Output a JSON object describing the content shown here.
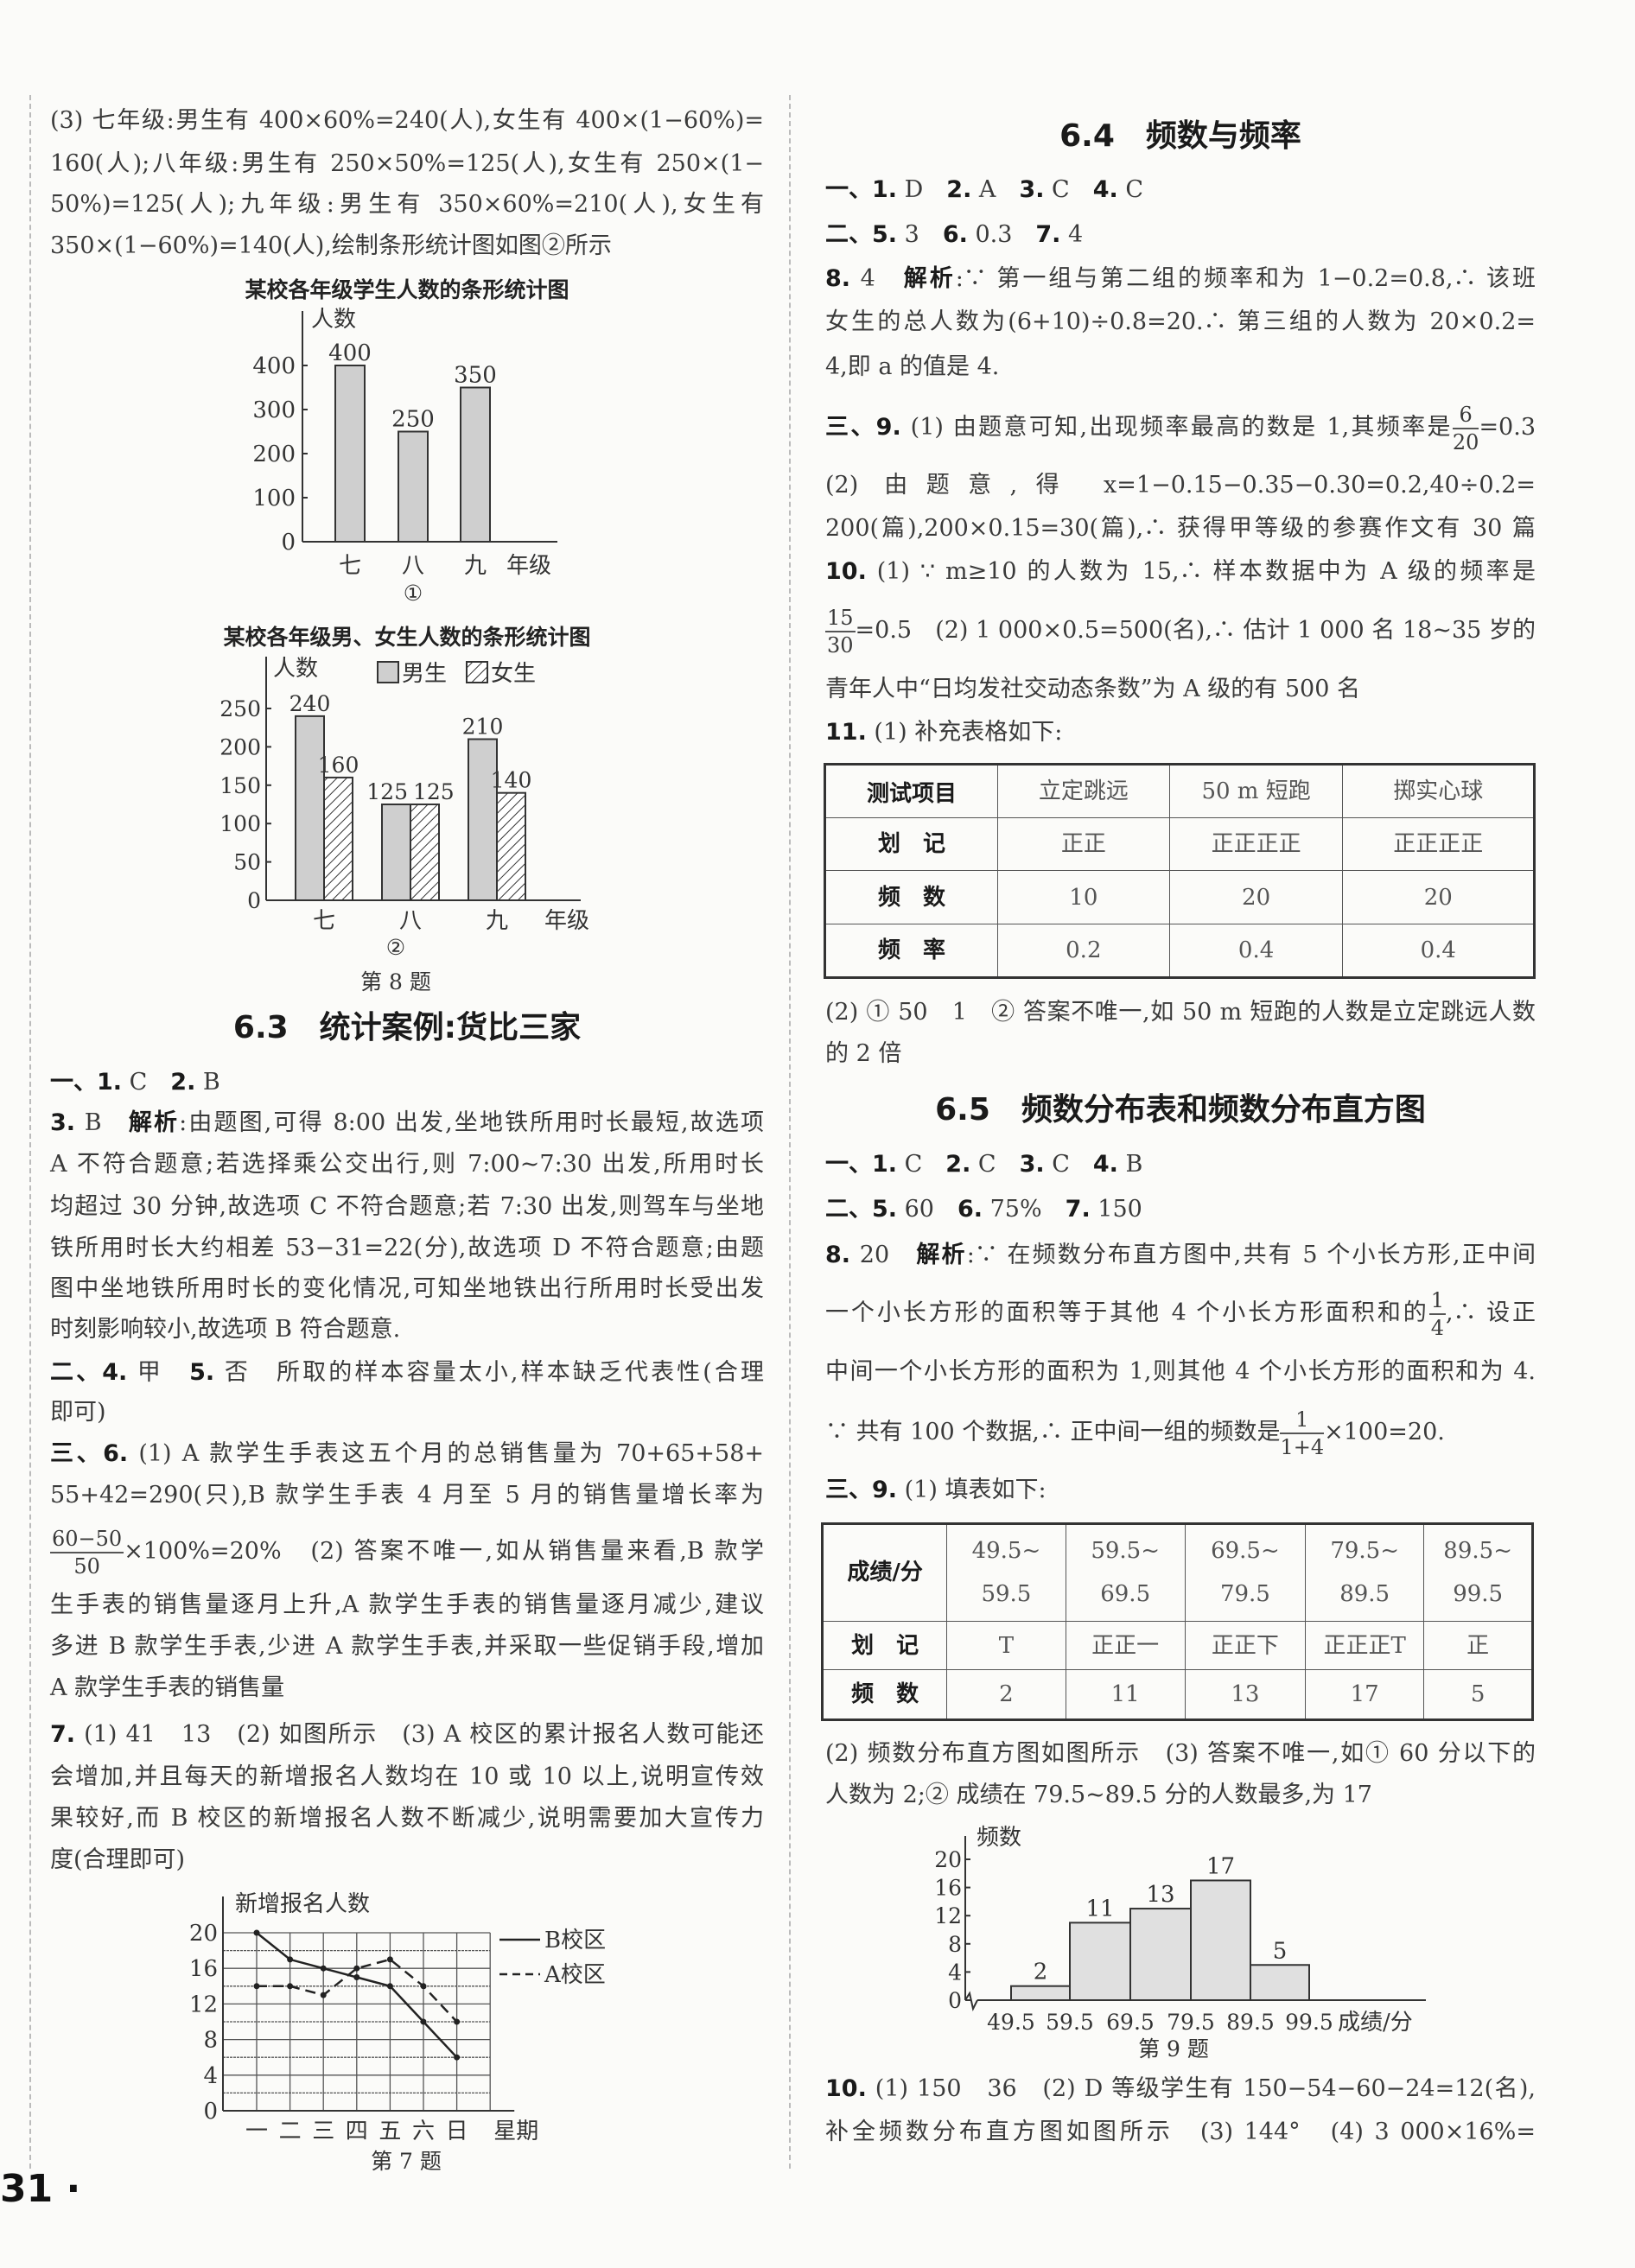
{
  "left": {
    "lines": [
      [
        {
          "t": "(3) 七年级:男生有 400×60%=240(人),女生有 400×(1−60%)="
        }
      ],
      [
        {
          "t": "160(人);八年级:男生有 250×50%=125(人),女生有 250×(1−"
        }
      ],
      [
        {
          "t": "50%)=125(人);九年级:男生有 350×60%=210(人),女生有"
        }
      ],
      [
        {
          "t": "350×(1−60%)=140(人),绘制条形统计图如图②所示"
        }
      ]
    ],
    "chart1_title": "某校各年级学生人数的条形统计图",
    "chart1_caption": "①",
    "chart2_title": "某校各年级男、女生人数的条形统计图",
    "chart2_caption": "②",
    "fig8_caption": "第 8 题",
    "sec63_title": "6.3　统计案例:货比三家",
    "sec63_lines": [
      [
        {
          "b": "一、1."
        },
        {
          "t": " C　"
        },
        {
          "b": "2."
        },
        {
          "t": " B"
        }
      ],
      [
        {
          "b": "3."
        },
        {
          "t": " B　"
        },
        {
          "b": "解析"
        },
        {
          "t": ":由题图,可得 8:00 出发,坐地铁所用时长最短,故选项"
        }
      ],
      [
        {
          "t": "A 不符合题意;若选择乘公交出行,则 7:00~7:30 出发,所用时长"
        }
      ],
      [
        {
          "t": "均超过 30 分钟,故选项 C 不符合题意;若 7:30 出发,则驾车与坐地"
        }
      ],
      [
        {
          "t": "铁所用时长大约相差 53−31=22(分),故选项 D 不符合题意;由题"
        }
      ],
      [
        {
          "t": "图中坐地铁所用时长的变化情况,可知坐地铁出行所用时长受出发"
        }
      ],
      [
        {
          "t": "时刻影响较小,故选项 B 符合题意."
        }
      ],
      [
        {
          "b": "二、4."
        },
        {
          "t": " 甲　"
        },
        {
          "b": "5."
        },
        {
          "t": " 否　所取的样本容量太小,样本缺乏代表性(合理"
        }
      ],
      [
        {
          "t": "即可)"
        }
      ],
      [
        {
          "b": "三、6."
        },
        {
          "t": " (1) A 款学生手表这五个月的总销售量为 70+65+58+"
        }
      ],
      [
        {
          "t": "55+42=290(只),B 款学生手表 4 月至 5 月的销售量增长率为"
        }
      ],
      [
        {
          "f": [
            "60−50",
            "50"
          ]
        },
        {
          "t": "×100%=20%　(2) 答案不唯一,如从销售量来看,B 款学"
        }
      ],
      [
        {
          "t": "生手表的销售量逐月上升,A 款学生手表的销售量逐月减少,建议"
        }
      ],
      [
        {
          "t": "多进 B 款学生手表,少进 A 款学生手表,并采取一些促销手段,增加"
        }
      ],
      [
        {
          "t": "A 款学生手表的销售量"
        }
      ],
      [
        {
          "b": "7."
        },
        {
          "t": " (1) 41　13　(2) 如图所示　(3) A 校区的累计报名人数可能还"
        }
      ],
      [
        {
          "t": "会增加,并且每天的新增报名人数均在 10 或 10 以上,说明宣传效"
        }
      ],
      [
        {
          "t": "果较好,而 B 校区的新增报名人数不断减少,说明需要加大宣传力"
        }
      ],
      [
        {
          "t": "度(合理即可)"
        }
      ]
    ],
    "fig7_caption": "第 7 题"
  },
  "right": {
    "sec64_title": "6.4　频数与频率",
    "sec64_lines": [
      [
        {
          "b": "一、1."
        },
        {
          "t": " D　"
        },
        {
          "b": "2."
        },
        {
          "t": " A　"
        },
        {
          "b": "3."
        },
        {
          "t": " C　"
        },
        {
          "b": "4."
        },
        {
          "t": " C"
        }
      ],
      [
        {
          "b": "二、5."
        },
        {
          "t": " 3　"
        },
        {
          "b": "6."
        },
        {
          "t": " 0.3　"
        },
        {
          "b": "7."
        },
        {
          "t": " 4"
        }
      ],
      [
        {
          "b": "8."
        },
        {
          "t": " 4　"
        },
        {
          "b": "解析"
        },
        {
          "t": ":∵ 第一组与第二组的频率和为 1−0.2=0.8,∴ 该班"
        }
      ],
      [
        {
          "t": "女生的总人数为(6+10)÷0.8=20.∴ 第三组的人数为 20×0.2="
        }
      ],
      [
        {
          "t": "4,即 a 的值是 4."
        }
      ],
      [
        {
          "b": "三、9."
        },
        {
          "t": " (1) 由题意可知,出现频率最高的数是 1,其频率是"
        },
        {
          "f": [
            "6",
            "20"
          ]
        },
        {
          "t": "=0.3"
        }
      ],
      [
        {
          "t": "(2) 由题意,得 x=1−0.15−0.35−0.30=0.2,40÷0.2="
        }
      ],
      [
        {
          "t": "200(篇),200×0.15=30(篇),∴ 获得甲等级的参赛作文有 30 篇"
        }
      ],
      [
        {
          "b": "10."
        },
        {
          "t": " (1) ∵ m≥10 的人数为 15,∴ 样本数据中为 A 级的频率是"
        }
      ],
      [
        {
          "f": [
            "15",
            "30"
          ]
        },
        {
          "t": "=0.5　(2) 1 000×0.5=500(名),∴ 估计 1 000 名 18~35 岁的"
        }
      ],
      [
        {
          "t": "青年人中“日均发社交动态条数”为 A 级的有 500 名"
        }
      ],
      [
        {
          "b": "11."
        },
        {
          "t": " (1) 补充表格如下:"
        }
      ]
    ],
    "table1": {
      "rows": [
        [
          "测试项目",
          "立定跳远",
          "50 m 短跑",
          "掷实心球"
        ],
        [
          "划　记",
          "正正",
          "正正正正",
          "正正正正"
        ],
        [
          "频　数",
          "10",
          "20",
          "20"
        ],
        [
          "频　率",
          "0.2",
          "0.4",
          "0.4"
        ]
      ]
    },
    "after_table1": [
      [
        {
          "t": "(2) ① 50　1　② 答案不唯一,如 50 m 短跑的人数是立定跳远人数"
        }
      ],
      [
        {
          "t": "的 2 倍"
        }
      ]
    ],
    "sec65_title": "6.5　频数分布表和频数分布直方图",
    "sec65_lines": [
      [
        {
          "b": "一、1."
        },
        {
          "t": " C　"
        },
        {
          "b": "2."
        },
        {
          "t": " C　"
        },
        {
          "b": "3."
        },
        {
          "t": " C　"
        },
        {
          "b": "4."
        },
        {
          "t": " B"
        }
      ],
      [
        {
          "b": "二、5."
        },
        {
          "t": " 60　"
        },
        {
          "b": "6."
        },
        {
          "t": " 75%　"
        },
        {
          "b": "7."
        },
        {
          "t": " 150"
        }
      ],
      [
        {
          "b": "8."
        },
        {
          "t": " 20　"
        },
        {
          "b": "解析"
        },
        {
          "t": ":∵ 在频数分布直方图中,共有 5 个小长方形,正中间"
        }
      ],
      [
        {
          "t": "一个小长方形的面积等于其他 4 个小长方形面积和的"
        },
        {
          "f": [
            "1",
            "4"
          ]
        },
        {
          "t": ",∴ 设正"
        }
      ],
      [
        {
          "t": "中间一个小长方形的面积为 1,则其他 4 个小长方形的面积和为 4."
        }
      ],
      [
        {
          "t": "∵ 共有 100 个数据,∴ 正中间一组的频数是"
        },
        {
          "f": [
            "1",
            "1+4"
          ]
        },
        {
          "t": "×100=20."
        }
      ],
      [
        {
          "b": "三、9."
        },
        {
          "t": " (1) 填表如下:"
        }
      ]
    ],
    "table2": {
      "rows": [
        [
          "成绩/分",
          "49.5~\n59.5",
          "59.5~\n69.5",
          "69.5~\n79.5",
          "79.5~\n89.5",
          "89.5~\n99.5"
        ],
        [
          "划　记",
          "T",
          "正正一",
          "正正下",
          "正正正T",
          "正"
        ],
        [
          "频　数",
          "2",
          "11",
          "13",
          "17",
          "5"
        ]
      ]
    },
    "after_table2": [
      [
        {
          "t": "(2) 频数分布直方图如图所示　(3) 答案不唯一,如① 60 分以下的"
        }
      ],
      [
        {
          "t": "人数为 2;② 成绩在 79.5~89.5 分的人数最多,为 17"
        }
      ]
    ],
    "fig9_caption": "第 9 题",
    "q10_lines": [
      [
        {
          "b": "10."
        },
        {
          "t": " (1) 150　36　(2) D 等级学生有 150−54−60−24=12(名),"
        }
      ],
      [
        {
          "t": "补全频数分布直方图如图所示　(3) 144°　(4) 3 000×16%="
        }
      ]
    ]
  },
  "page_number": "31 ·",
  "chart_data": [
    {
      "type": "bar",
      "title": "某校各年级学生人数的条形统计图",
      "ylabel": "人数",
      "xlabel": "年级",
      "categories": [
        "七",
        "八",
        "九"
      ],
      "values": [
        400,
        250,
        350
      ],
      "ylim": [
        0,
        400
      ],
      "yticks": [
        0,
        100,
        200,
        300,
        400
      ],
      "grid": false,
      "fill": "#cfcfcf"
    },
    {
      "type": "bar",
      "title": "某校各年级男、女生人数的条形统计图",
      "ylabel": "人数",
      "xlabel": "年级",
      "categories": [
        "七",
        "八",
        "九"
      ],
      "series": [
        {
          "name": "男生",
          "values": [
            240,
            125,
            210
          ],
          "pattern": "solid"
        },
        {
          "name": "女生",
          "values": [
            160,
            125,
            140
          ],
          "pattern": "hatch"
        }
      ],
      "ylim": [
        0,
        250
      ],
      "yticks": [
        0,
        50,
        100,
        150,
        200,
        250
      ],
      "legend": "top",
      "grid": false
    },
    {
      "type": "line",
      "ylabel": "新增报名人数",
      "xlabel": "星期",
      "categories": [
        "一",
        "二",
        "三",
        "四",
        "五",
        "六",
        "日"
      ],
      "series": [
        {
          "name": "B校区",
          "values": [
            20,
            17,
            16,
            15,
            14,
            10,
            6
          ],
          "style": "solid"
        },
        {
          "name": "A校区",
          "values": [
            14,
            14,
            13,
            16,
            17,
            14,
            10
          ],
          "style": "dashed"
        }
      ],
      "ylim": [
        0,
        20
      ],
      "yticks": [
        0,
        4,
        8,
        12,
        16,
        20
      ],
      "legend": "right",
      "grid": true
    },
    {
      "type": "bar",
      "subtype": "histogram",
      "ylabel": "频数",
      "xlabel": "成绩/分",
      "bin_edges": [
        49.5,
        59.5,
        69.5,
        79.5,
        89.5,
        99.5
      ],
      "values": [
        2,
        11,
        13,
        17,
        5
      ],
      "ylim": [
        0,
        20
      ],
      "yticks": [
        0,
        4,
        8,
        12,
        16,
        20
      ],
      "grid": false,
      "fill": "#e0e0e0"
    }
  ]
}
